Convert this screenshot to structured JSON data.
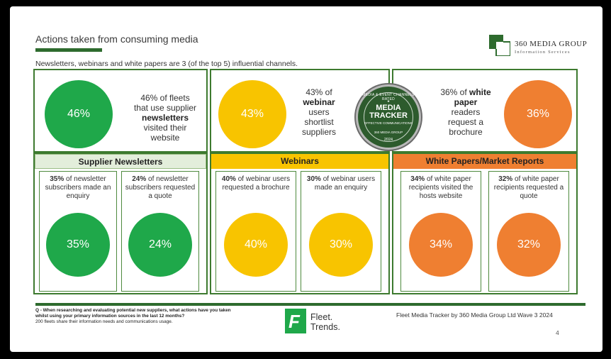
{
  "header": {
    "title": "Actions taken from consuming media",
    "subtitle": "Newsletters, webinars and white papers are 3 (of the top 5) influential channels."
  },
  "logo": {
    "name": "360 MEDIA GROUP",
    "tagline": "Information Services"
  },
  "colors": {
    "green": "#1fa84a",
    "yellow": "#f8c400",
    "orange": "#ef7f31",
    "frame": "#3d7a2f"
  },
  "top": {
    "newsletters": {
      "pct": "46%",
      "line1": "46% of fleets",
      "line2": "that use supplier",
      "bold": "newsletters",
      "line4": "visited their",
      "line5": "website"
    },
    "webinars": {
      "pct": "43%",
      "line1": "43% of",
      "bold": "webinar",
      "line3": "users",
      "line4": "shortlist",
      "line5": "suppliers"
    },
    "whitepapers": {
      "pct": "36%",
      "line1a": "36% of ",
      "bold1": "white",
      "bold2": "paper",
      "line3": "readers",
      "line4": "request a",
      "line5": "brochure"
    }
  },
  "badge": {
    "arc_text": "MEDIA & EVENT CHANNELS RATED",
    "big1": "MEDIA",
    "big2": "TRACKER",
    "small": "EFFECTIVE COMMUNICATIONS",
    "group": "360 MEDIA GROUP",
    "year": "2024"
  },
  "sections": {
    "newsletters": {
      "header": "Supplier Newsletters",
      "cards": [
        {
          "bold": "35%",
          "rest": " of newsletter subscribers made an enquiry",
          "pct": "35%"
        },
        {
          "bold": "24%",
          "rest": " of newsletter subscribers requested a quote",
          "pct": "24%"
        }
      ]
    },
    "webinars": {
      "header": "Webinars",
      "cards": [
        {
          "bold": "40%",
          "rest": " of webinar users requested a brochure",
          "pct": "40%"
        },
        {
          "bold": "30%",
          "rest": " of webinar users made an enquiry",
          "pct": "30%"
        }
      ]
    },
    "whitepapers": {
      "header": "White Papers/Market Reports",
      "cards": [
        {
          "bold": "34%",
          "rest": " of white paper recipients visited the hosts website",
          "pct": "34%"
        },
        {
          "bold": "32%",
          "rest": " of white paper recipients requested a quote",
          "pct": "32%"
        }
      ]
    }
  },
  "footer": {
    "question": "Q - When researching and evaluating potential new suppliers, what actions have you taken whilst using your primary information sources in the last 12 months?",
    "note": "200 fleets share their information needs and communications usage.",
    "brand_line1": "Fleet.",
    "brand_line2": "Trends.",
    "credit": "Fleet Media Tracker by 360 Media Group Ltd Wave 3  2024",
    "page": "4"
  }
}
